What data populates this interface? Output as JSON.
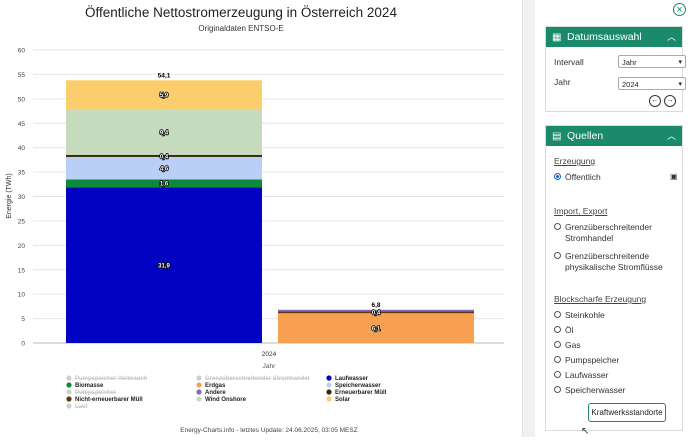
{
  "chart_data": {
    "type": "bar",
    "stacked": true,
    "title": "Öffentliche Nettostromerzeugung in Österreich 2024",
    "subtitle": "Originaldaten ENTSO-E",
    "ylabel": "Energie (TWh)",
    "xlabel": "Jahr",
    "categories": [
      "2024"
    ],
    "ylim": [
      0,
      60
    ],
    "yticks": [
      0,
      5,
      10,
      15,
      20,
      25,
      30,
      35,
      40,
      45,
      50,
      55,
      60
    ],
    "grid": true,
    "legend_position": "bottom",
    "footer": "Energy-Charts.info - letztes Update: 24.06.2025, 03:05 MESZ",
    "bars": [
      {
        "category": "2024",
        "total_label": "54,1",
        "segments": [
          {
            "name": "Laufwasser",
            "value": 31.9,
            "label": "31,9",
            "color": "#0202c2"
          },
          {
            "name": "Biomasse",
            "value": 1.6,
            "label": "1,6",
            "color": "#0c8a3a"
          },
          {
            "name": "Speicherwasser",
            "value": 4.6,
            "label": "4,6",
            "color": "#b9cff5"
          },
          {
            "name": "Erneuerbarer Müll",
            "value": 0.4,
            "label": "0,4",
            "color": "#3a2800"
          },
          {
            "name": "Wind Onshore",
            "value": 9.4,
            "label": "9,4",
            "color": "#c6dbbd"
          },
          {
            "name": "Solar",
            "value": 5.9,
            "label": "5,9",
            "color": "#fccd6c"
          }
        ]
      },
      {
        "category": "",
        "total_label": "6,8",
        "segments": [
          {
            "name": "Erdgas",
            "value": 6.1,
            "label": "6,1",
            "color": "#f7a052"
          },
          {
            "name": "Nicht-erneuerbarer Müll",
            "value": 0.4,
            "label": "0,4",
            "color": "#5c3a0d"
          },
          {
            "name": "Andere",
            "value": 0.3,
            "label": "",
            "color": "#8866bb"
          }
        ]
      }
    ],
    "legend": [
      {
        "name": "Pumpspeicher Verbrauch",
        "color": "#cfcfcf",
        "disabled": true
      },
      {
        "name": "Grenzüberschreitender Stromhandel",
        "color": "#cfcfcf",
        "disabled": true
      },
      {
        "name": "Laufwasser",
        "color": "#0202c2",
        "disabled": false
      },
      {
        "name": "Biomasse",
        "color": "#0c8a3a",
        "disabled": false
      },
      {
        "name": "Erdgas",
        "color": "#f7a052",
        "disabled": false
      },
      {
        "name": "Speicherwasser",
        "color": "#b9cff5",
        "disabled": false
      },
      {
        "name": "Pumpspeicher",
        "color": "#cfcfcf",
        "disabled": true
      },
      {
        "name": "Andere",
        "color": "#8866bb",
        "disabled": false
      },
      {
        "name": "Erneuerbarer Müll",
        "color": "#3a2800",
        "disabled": false
      },
      {
        "name": "Nicht-erneuerbarer Müll",
        "color": "#5c3a0d",
        "disabled": false
      },
      {
        "name": "Wind Onshore",
        "color": "#c6dbbd",
        "disabled": false
      },
      {
        "name": "Solar",
        "color": "#fccd6c",
        "disabled": false
      },
      {
        "name": "Last",
        "color": "#cfcfcf",
        "disabled": true
      }
    ]
  },
  "panel": {
    "date_card": {
      "title": "Datumsauswahl",
      "interval_label": "Intervall",
      "interval_value": "Jahr",
      "year_label": "Jahr",
      "year_value": "2024"
    },
    "sources_card": {
      "title": "Quellen",
      "erzeugung_heading": "Erzeugung",
      "oeffentlich_label": "Öffentlich",
      "import_heading": "Import, Export",
      "option_stromhandel_1": "Grenzüberschreitender",
      "option_stromhandel_2": "Stromhandel",
      "option_physikalisch_1": "Grenzüberschreitende",
      "option_physikalisch_2": "physikalische Stromflüsse",
      "block_heading": "Blockscharfe Erzeugung",
      "block_options": [
        "Steinkohle",
        "Öl",
        "Gas",
        "Pumpspeicher",
        "Laufwasser",
        "Speicherwasser"
      ],
      "kraftwerk_button": "Kraftwerksstandorte"
    },
    "accent_color": "#1a8a6a"
  }
}
